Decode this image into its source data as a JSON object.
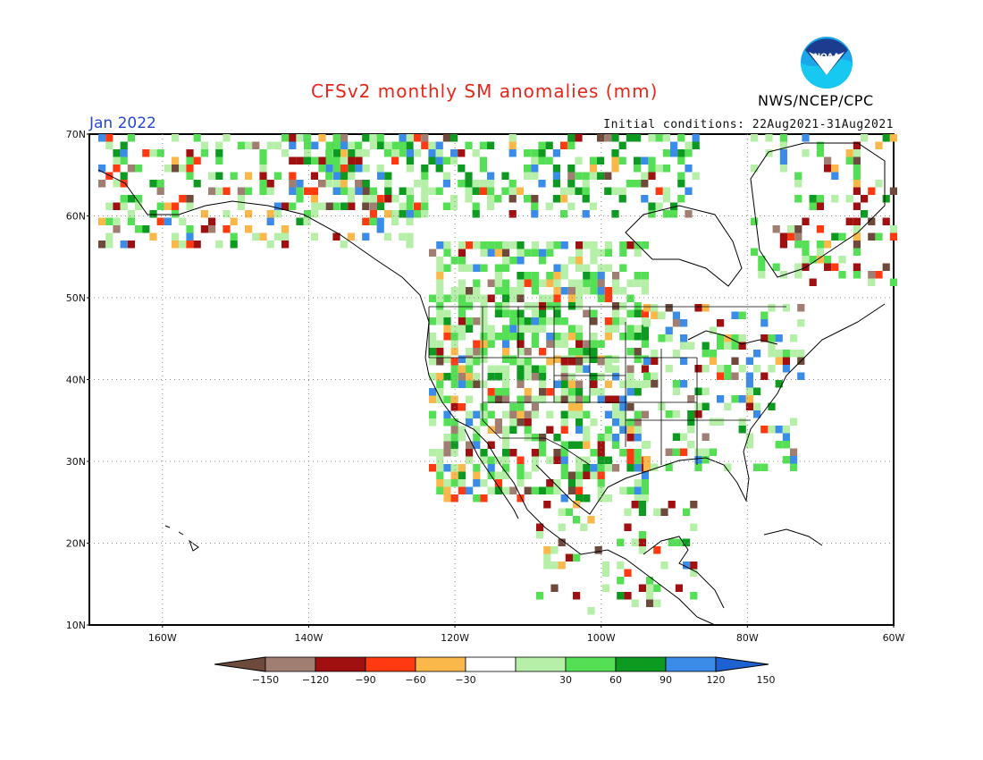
{
  "title": "CFSv2 monthly SM anomalies (mm)",
  "valid_month": "Jan 2022",
  "initial_conditions": "Initial conditions: 22Aug2021-31Aug2021",
  "agency": "NWS/NCEP/CPC",
  "logo_text": "NOAA",
  "map": {
    "lat_labels": [
      "70N",
      "60N",
      "50N",
      "40N",
      "30N",
      "20N",
      "10N"
    ],
    "lon_labels": [
      "160W",
      "140W",
      "120W",
      "100W",
      "80W",
      "60W"
    ]
  },
  "colorbar": {
    "tick_labels": [
      "-150",
      "-120",
      "-90",
      "-60",
      "-30",
      "30",
      "60",
      "90",
      "120",
      "150"
    ],
    "colors": [
      "#6e4a3c",
      "#a07e72",
      "#a01010",
      "#ff3a10",
      "#fbb84a",
      "#ffffff",
      "#b6f0a8",
      "#55df55",
      "#0c9a20",
      "#3b8ce8",
      "#1e62d2"
    ]
  },
  "colors": {
    "title": "#e8251a",
    "month": "#2646d6",
    "land_background": "#ffffff",
    "grid": "#888888"
  }
}
